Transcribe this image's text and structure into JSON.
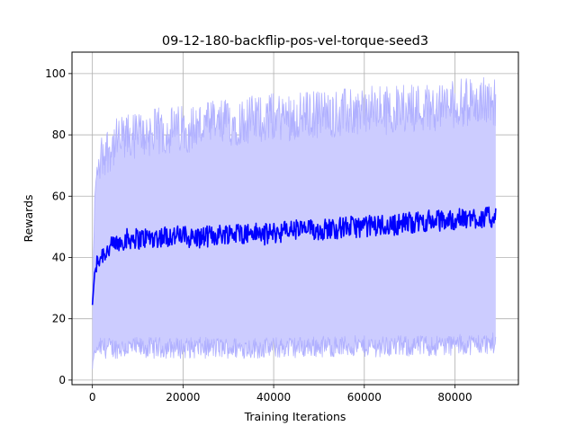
{
  "chart_data": {
    "type": "line",
    "title": "09-12-180-backflip-pos-vel-torque-seed3",
    "xlabel": "Training Iterations",
    "ylabel": "Rewards",
    "xlim": [
      -4500,
      94000
    ],
    "ylim": [
      -1.5,
      107
    ],
    "grid": true,
    "xticks": [
      0,
      20000,
      40000,
      60000,
      80000
    ],
    "xtick_labels": [
      "0",
      "20000",
      "40000",
      "60000",
      "80000"
    ],
    "yticks": [
      0,
      20,
      40,
      60,
      80,
      100
    ],
    "ytick_labels": [
      "0",
      "20",
      "40",
      "60",
      "80",
      "100"
    ],
    "colors": {
      "mean": "#0000ff",
      "band_fill": "#ccccff",
      "band_edge": "#b0b0ff",
      "grid": "#b0b0b0"
    },
    "series": [
      {
        "role": "mean",
        "x": [
          0,
          500,
          1000,
          2000,
          3000,
          4000,
          5000,
          6000,
          7000,
          8000,
          9000,
          10000,
          12000,
          14000,
          16000,
          18000,
          20000,
          22000,
          24000,
          26000,
          28000,
          30000,
          32000,
          34000,
          36000,
          38000,
          40000,
          42000,
          44000,
          46000,
          48000,
          50000,
          52000,
          54000,
          56000,
          58000,
          60000,
          62000,
          64000,
          66000,
          68000,
          70000,
          72000,
          74000,
          76000,
          78000,
          80000,
          82000,
          84000,
          86000,
          88000,
          89000
        ],
        "y": [
          24.5,
          35,
          38,
          41,
          42,
          43,
          44,
          45,
          46,
          46,
          46.5,
          46,
          46.5,
          46.5,
          47,
          47,
          47,
          46.5,
          46.5,
          47,
          47.5,
          48,
          48,
          48,
          48,
          47.5,
          48,
          48.5,
          49,
          49,
          49,
          49,
          49.5,
          49.5,
          50,
          50,
          50,
          50.5,
          50.5,
          50.5,
          51,
          51.5,
          51.5,
          52,
          52,
          52,
          52.5,
          52.5,
          53,
          53,
          53,
          53
        ]
      },
      {
        "role": "upper",
        "x": [
          0,
          500,
          1000,
          2000,
          3000,
          4000,
          5000,
          6000,
          8000,
          10000,
          15000,
          20000,
          25000,
          30000,
          35000,
          40000,
          45000,
          50000,
          55000,
          60000,
          65000,
          70000,
          75000,
          80000,
          85000,
          89000
        ],
        "y": [
          25,
          58,
          68,
          73,
          75,
          76,
          77,
          78,
          79,
          80,
          81,
          82,
          83,
          84,
          85,
          86,
          86,
          87,
          87,
          88,
          88,
          89,
          89,
          90,
          91,
          91
        ]
      },
      {
        "role": "lower",
        "x": [
          0,
          500,
          1000,
          2000,
          5000,
          10000,
          20000,
          30000,
          40000,
          50000,
          60000,
          70000,
          80000,
          89000
        ],
        "y": [
          4,
          9,
          10,
          10.5,
          10.5,
          10.5,
          10.5,
          10.5,
          10.5,
          11,
          11,
          11,
          11.5,
          12
        ]
      }
    ]
  }
}
